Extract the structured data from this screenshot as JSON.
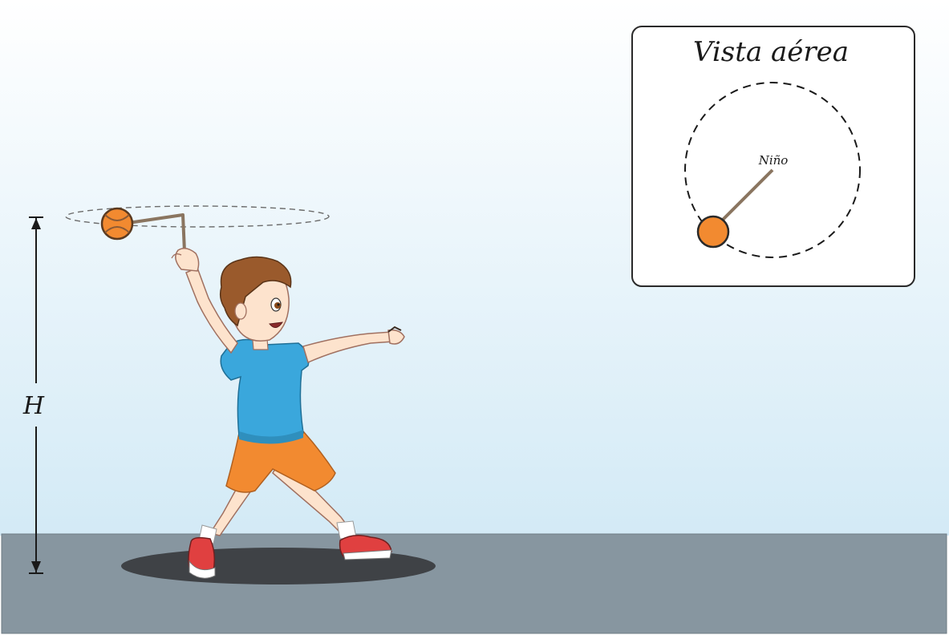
{
  "labels": {
    "height": "H",
    "panel_title": "Vista aérea",
    "child": "Niño"
  },
  "colors": {
    "sky_top": "#ffffff",
    "sky_bottom": "#d6ecf7",
    "ground": "#8796a0",
    "shadow": "#3f4246",
    "ball": "#f28a30",
    "string": "#8a7560",
    "shirt": "#3aa7dc",
    "shorts": "#f28a30",
    "hair": "#9a5a2c",
    "skin": "#fde3cd",
    "shoe": "#e04040"
  }
}
